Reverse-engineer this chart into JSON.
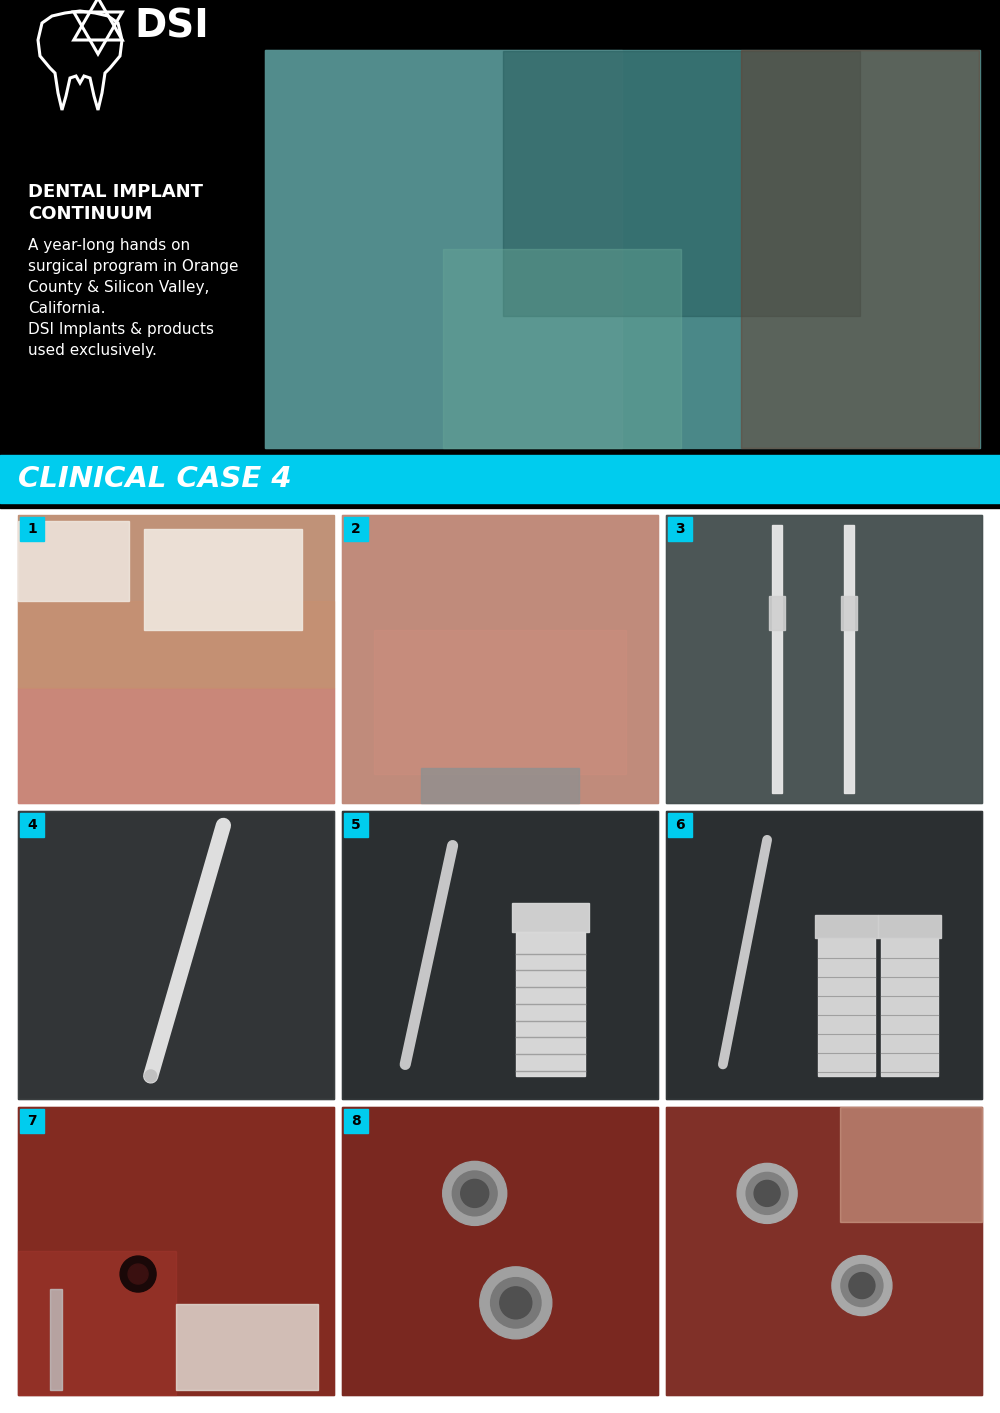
{
  "bg_color": "#000000",
  "grid_bg": "#ffffff",
  "cyan_color": "#00CCEE",
  "white_color": "#FFFFFF",
  "header_bg": "#000000",
  "case_label": "CLINICAL CASE 4",
  "dsi_label": "DSI",
  "title_bold_line1": "DENTAL IMPLANT",
  "title_bold_line2": "CONTINUUM",
  "body_line1": "A year-long hands on",
  "body_line2": "surgical program in Orange",
  "body_line3": "County & Silicon Valley,",
  "body_line4": "California.",
  "body_line5": "DSI Implants & products",
  "body_line6": "used exclusively.",
  "fig_width": 10.0,
  "fig_height": 14.13,
  "cell_numbers": [
    "1",
    "2",
    "3",
    "4",
    "5",
    "6",
    "7",
    "8",
    ""
  ],
  "number_bg": "#00CCEE",
  "number_color": "#000000",
  "photo_placeholder": "#5a8080",
  "row0_colors": [
    "#c8907a",
    "#c09080",
    "#5a6a6a"
  ],
  "row1_colors": [
    "#1a1a20",
    "#181820",
    "#181820"
  ],
  "row2_colors": [
    "#8a3030",
    "#7a2828",
    "#803028"
  ]
}
